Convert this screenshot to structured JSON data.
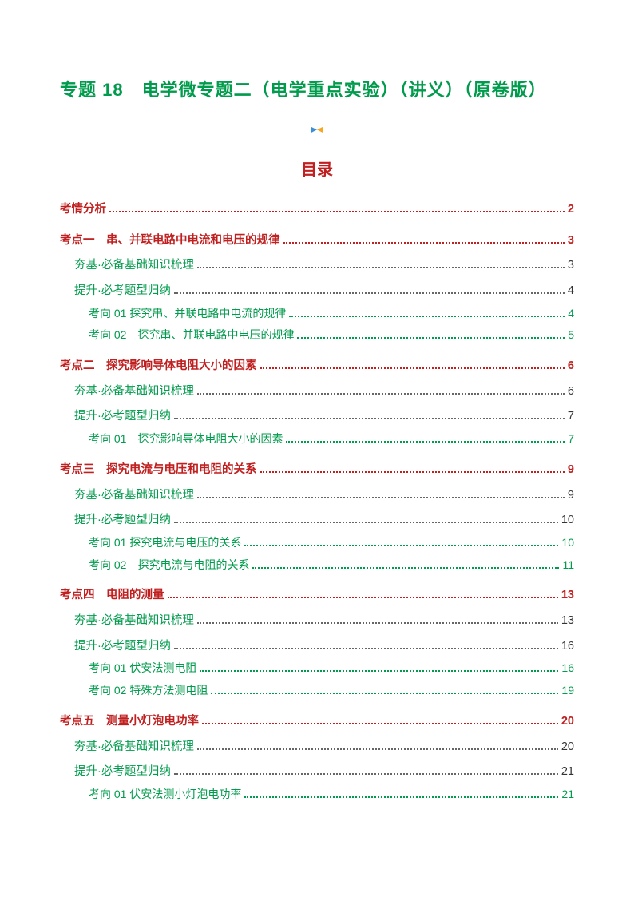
{
  "title": "专题 18　电学微专题二（电学重点实验）（讲义）（原卷版）",
  "toc_heading": "目录",
  "colors": {
    "title_green": "#009b4c",
    "heading_red": "#c02020",
    "sub_green": "#009b4c",
    "gray_text": "#333333"
  },
  "entries": [
    {
      "level": 0,
      "text": "考情分析",
      "page": "2"
    },
    {
      "level": 0,
      "text": "考点一　串、并联电路中电流和电压的规律",
      "page": "3"
    },
    {
      "level": 1,
      "text": "夯基·必备基础知识梳理",
      "page": "3"
    },
    {
      "level": 1,
      "text": "提升·必考题型归纳",
      "page": "4"
    },
    {
      "level": 2,
      "text": "考向 01  探究串、并联电路中电流的规律",
      "page": "4"
    },
    {
      "level": 2,
      "text": "考向 02　探究串、并联电路中电压的规律",
      "page": "5"
    },
    {
      "level": 0,
      "text": "考点二　探究影响导体电阻大小的因素",
      "page": "6"
    },
    {
      "level": 1,
      "text": "夯基·必备基础知识梳理",
      "page": "6"
    },
    {
      "level": 1,
      "text": "提升·必考题型归纳",
      "page": "7"
    },
    {
      "level": 2,
      "text": "考向 01　探究影响导体电阻大小的因素",
      "page": "7"
    },
    {
      "level": 0,
      "text": "考点三　探究电流与电压和电阻的关系",
      "page": "9"
    },
    {
      "level": 1,
      "text": "夯基·必备基础知识梳理",
      "page": "9"
    },
    {
      "level": 1,
      "text": "提升·必考题型归纳",
      "page": "10"
    },
    {
      "level": 2,
      "text": "考向 01  探究电流与电压的关系",
      "page": "10"
    },
    {
      "level": 2,
      "text": "考向 02　探究电流与电阻的关系",
      "page": "11"
    },
    {
      "level": 0,
      "text": "考点四　电阻的测量",
      "page": "13"
    },
    {
      "level": 1,
      "text": "夯基·必备基础知识梳理",
      "page": "13"
    },
    {
      "level": 1,
      "text": "提升·必考题型归纳",
      "page": "16"
    },
    {
      "level": 2,
      "text": "考向 01  伏安法测电阻",
      "page": "16"
    },
    {
      "level": 2,
      "text": "考向 02  特殊方法测电阻",
      "page": "19"
    },
    {
      "level": 0,
      "text": "考点五　测量小灯泡电功率",
      "page": "20"
    },
    {
      "level": 1,
      "text": "夯基·必备基础知识梳理",
      "page": "20"
    },
    {
      "level": 1,
      "text": "提升·必考题型归纳",
      "page": "21"
    },
    {
      "level": 2,
      "text": "考向 01  伏安法测小灯泡电功率",
      "page": "21"
    }
  ]
}
